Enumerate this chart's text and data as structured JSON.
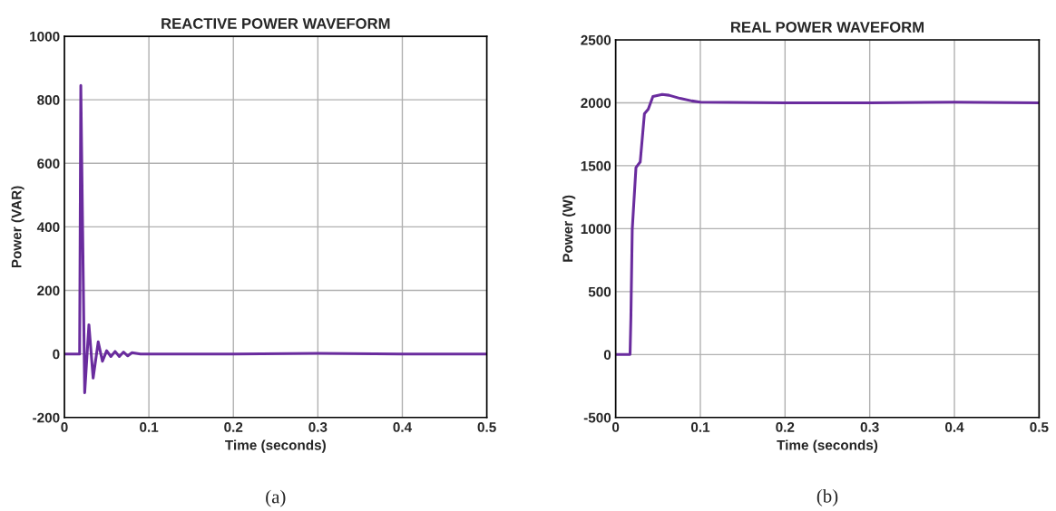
{
  "chart_data": [
    {
      "type": "line",
      "title": "REACTIVE POWER WAVEFORM",
      "xlabel": "Time (seconds)",
      "ylabel": "Power (VAR)",
      "annotations": [
        "(a)"
      ],
      "series": [
        {
          "color": "#6a2c9e",
          "x": [
            0,
            0.018,
            0.0194,
            0.024,
            0.029,
            0.034,
            0.04,
            0.045,
            0.05,
            0.055,
            0.06,
            0.065,
            0.07,
            0.075,
            0.08,
            0.09,
            0.1,
            0.2,
            0.3,
            0.4,
            0.5
          ],
          "values": [
            0,
            0,
            845,
            -122,
            92,
            -76,
            38,
            -23,
            10,
            -8,
            8,
            -8,
            6,
            -6,
            4,
            0,
            0,
            0,
            2,
            0,
            0
          ]
        }
      ],
      "xlim": [
        0,
        0.5
      ],
      "xticks": [
        0,
        0.1,
        0.2,
        0.3,
        0.4,
        0.5
      ],
      "ylim": [
        -200,
        1000
      ],
      "yticks": [
        -200,
        0,
        200,
        400,
        600,
        800,
        1000
      ],
      "grid": true,
      "legend": false
    },
    {
      "type": "line",
      "title": "REAL POWER WAVEFORM",
      "xlabel": "Time (seconds)",
      "ylabel": "Power (W)",
      "annotations": [
        "(b)"
      ],
      "series": [
        {
          "color": "#6a2c9e",
          "x": [
            0,
            0.017,
            0.018,
            0.0196,
            0.024,
            0.029,
            0.034,
            0.0385,
            0.044,
            0.055,
            0.063,
            0.076,
            0.09,
            0.1,
            0.2,
            0.3,
            0.4,
            0.5
          ],
          "values": [
            0,
            0,
            293,
            995,
            1486,
            1530,
            1914,
            1950,
            2050,
            2067,
            2060,
            2035,
            2015,
            2005,
            2000,
            2000,
            2005,
            2000
          ]
        }
      ],
      "xlim": [
        0,
        0.5
      ],
      "xticks": [
        0,
        0.1,
        0.2,
        0.3,
        0.4,
        0.5
      ],
      "ylim": [
        -500,
        2500
      ],
      "yticks": [
        -500,
        0,
        500,
        1000,
        1500,
        2000,
        2500
      ],
      "grid": true,
      "legend": false
    }
  ]
}
